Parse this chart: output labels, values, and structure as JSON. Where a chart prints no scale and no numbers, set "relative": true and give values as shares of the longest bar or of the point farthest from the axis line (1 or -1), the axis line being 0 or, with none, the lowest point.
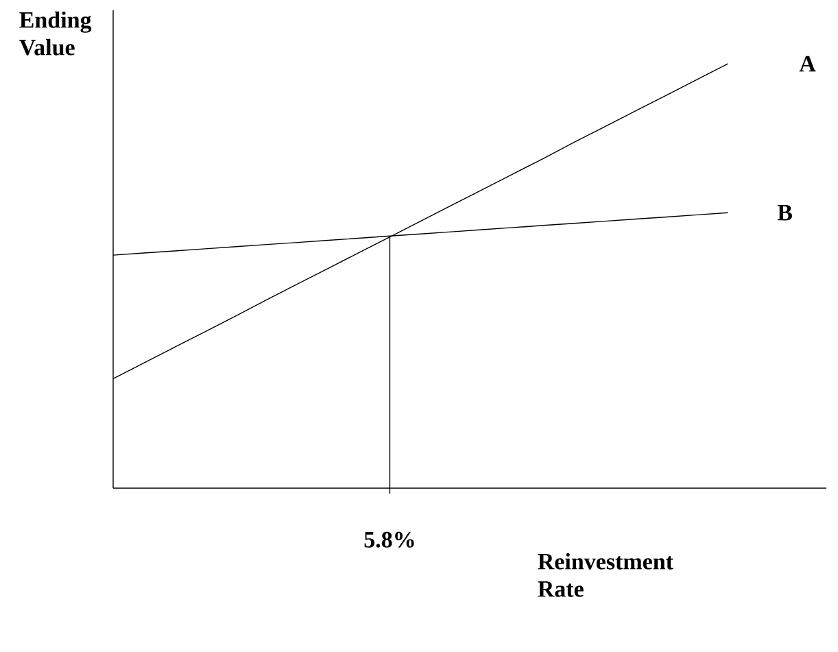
{
  "chart_data": {
    "type": "line",
    "relative": true,
    "xlabel": "Reinvestment Rate",
    "ylabel": "Ending Value",
    "legend": false,
    "marker": "none",
    "line_style": "solid",
    "categories": [
      null,
      null,
      null,
      null,
      null,
      null,
      null,
      null,
      null,
      null,
      null,
      null,
      null,
      null,
      null,
      null,
      null,
      null,
      null,
      null,
      null
    ],
    "annotations": [
      "5.8%"
    ],
    "series": [
      {
        "name": "A",
        "color": "#000000",
        "values": [
          0.258,
          0.295,
          0.332,
          0.369,
          0.406,
          0.444,
          0.481,
          0.518,
          0.555,
          0.592,
          0.629,
          0.666,
          0.703,
          0.74,
          0.777,
          0.815,
          0.852,
          0.889,
          0.926,
          0.963,
          1
        ]
      },
      {
        "name": "B",
        "color": "#000000",
        "values": [
          0.549,
          0.554,
          0.559,
          0.564,
          0.569,
          0.574,
          0.579,
          0.584,
          0.589,
          0.594,
          0.599,
          0.604,
          0.609,
          0.614,
          0.619,
          0.624,
          0.629,
          0.634,
          0.639,
          0.644,
          0.649
        ]
      }
    ]
  }
}
